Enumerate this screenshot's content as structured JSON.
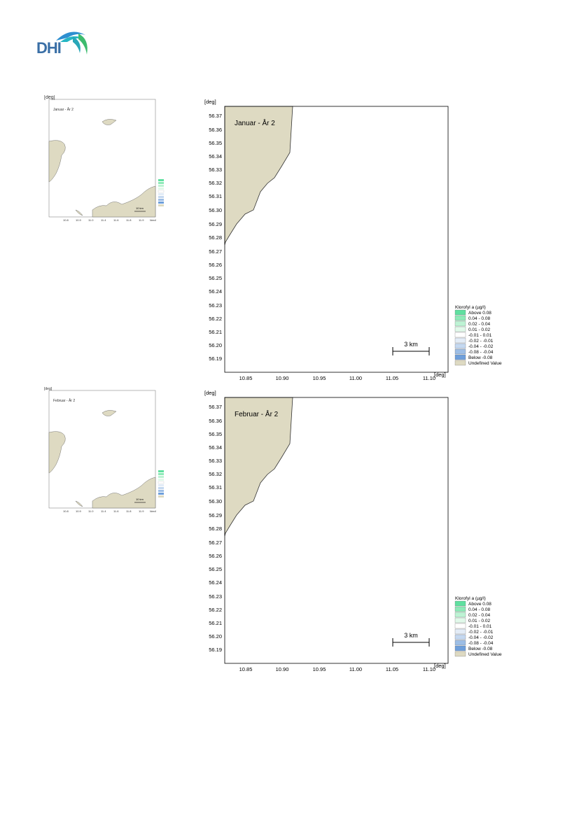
{
  "logo": {
    "text": "DHI"
  },
  "maps": [
    {
      "title": "Januar - År 2",
      "thumb_label": "Januar - År 2",
      "unit_y": "[deg]",
      "unit_x": "[deg]",
      "y_ticks": [
        "56.37",
        "56.36",
        "56.35",
        "56.34",
        "56.33",
        "56.32",
        "56.31",
        "56.30",
        "56.29",
        "56.28",
        "56.27",
        "56.26",
        "56.25",
        "56.24",
        "56.23",
        "56.22",
        "56.21",
        "56.20",
        "56.19"
      ],
      "x_ticks": [
        "10.85",
        "10.90",
        "10.95",
        "11.00",
        "11.05",
        "11.10"
      ],
      "scale_bar": "3 km",
      "legend": {
        "title": "Klorofyl a (µg/l)",
        "items": [
          {
            "label": "Above  0.08",
            "color": "#5fe0a0"
          },
          {
            "label": " 0.04 -  0.08",
            "color": "#8eeab8"
          },
          {
            "label": " 0.02 -  0.04",
            "color": "#bdf3d4"
          },
          {
            "label": " 0.01 -  0.02",
            "color": "#e1f9ea"
          },
          {
            "label": "-0.01 -  0.01",
            "color": "#ffffff"
          },
          {
            "label": "-0.02 - -0.01",
            "color": "#e3ecf7"
          },
          {
            "label": "-0.04 - -0.02",
            "color": "#c4d8f0"
          },
          {
            "label": "-0.08 - -0.04",
            "color": "#9dbee6"
          },
          {
            "label": "Below -0.08",
            "color": "#6e9fdb"
          },
          {
            "label": "Undefined Value",
            "color": "#dedac2"
          }
        ]
      }
    },
    {
      "title": "Februar - År 2",
      "thumb_label": "Februar - År 2",
      "unit_y": "[deg]",
      "unit_x": "[deg]",
      "y_ticks": [
        "56.37",
        "56.36",
        "56.35",
        "56.34",
        "56.33",
        "56.32",
        "56.31",
        "56.30",
        "56.29",
        "56.28",
        "56.27",
        "56.26",
        "56.25",
        "56.24",
        "56.23",
        "56.22",
        "56.21",
        "56.20",
        "56.19"
      ],
      "x_ticks": [
        "10.85",
        "10.90",
        "10.95",
        "11.00",
        "11.05",
        "11.10"
      ],
      "scale_bar": "3 km",
      "legend": {
        "title": "Klorofyl a (µg/l)",
        "items": [
          {
            "label": "Above  0.08",
            "color": "#5fe0a0"
          },
          {
            "label": " 0.04 -  0.08",
            "color": "#8eeab8"
          },
          {
            "label": " 0.02 -  0.04",
            "color": "#bdf3d4"
          },
          {
            "label": " 0.01 -  0.02",
            "color": "#e1f9ea"
          },
          {
            "label": "-0.01 -  0.01",
            "color": "#ffffff"
          },
          {
            "label": "-0.02 - -0.01",
            "color": "#e3ecf7"
          },
          {
            "label": "-0.04 - -0.02",
            "color": "#c4d8f0"
          },
          {
            "label": "-0.08 - -0.04",
            "color": "#9dbee6"
          },
          {
            "label": "Below -0.08",
            "color": "#6e9fdb"
          },
          {
            "label": "Undefined Value",
            "color": "#dedac2"
          }
        ]
      }
    }
  ],
  "colors": {
    "land": "#dedac2",
    "frame": "#000000",
    "logo_blue": "#3a6fa6"
  }
}
